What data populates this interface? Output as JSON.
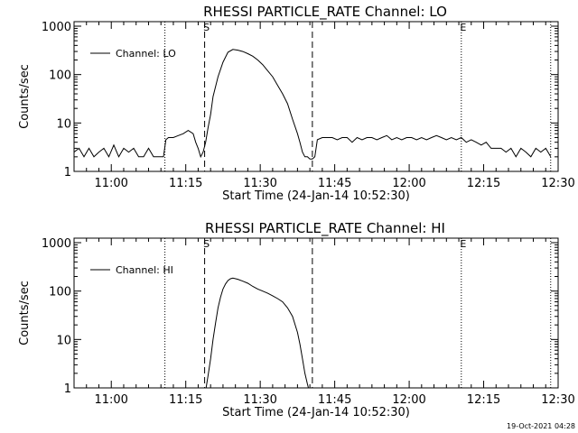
{
  "footer": {
    "timestamp": "19-Oct-2021 04:28"
  },
  "chart_data": [
    {
      "type": "line",
      "title": "RHESSI PARTICLE_RATE Channel: LO",
      "xlabel": "Start Time (24-Jan-14 10:52:30)",
      "ylabel": "Counts/sec",
      "yscale": "log",
      "ylim": [
        1,
        1000
      ],
      "xlim_min": [
        0,
        97.5
      ],
      "y_ticks": [
        "1",
        "10",
        "100",
        "1000"
      ],
      "x_tick_labels": [
        "11:00",
        "11:15",
        "11:30",
        "11:45",
        "12:00",
        "12:15",
        "12:30"
      ],
      "x_tick_min": [
        7.5,
        22.5,
        37.5,
        52.5,
        67.5,
        82.5,
        97.5
      ],
      "legend": {
        "label": "Channel: LO",
        "position": "top-left"
      },
      "markers": [
        {
          "label": "",
          "min": 18.3,
          "style": "dotted"
        },
        {
          "label": "S",
          "min": 26.3,
          "style": "dashed"
        },
        {
          "label": "",
          "min": 48.0,
          "style": "dashed"
        },
        {
          "label": "E",
          "min": 78.0,
          "style": "dotted"
        },
        {
          "label": "",
          "min": 96.0,
          "style": "dotted"
        }
      ],
      "series": [
        {
          "x": [
            0,
            1,
            2,
            3,
            4,
            5,
            6,
            7,
            8,
            9,
            10,
            11,
            12,
            13,
            14,
            15,
            16,
            17,
            18,
            18.5,
            19,
            20,
            21,
            22,
            23,
            24,
            24.5,
            25,
            25.5,
            26,
            26.5,
            27,
            27.5,
            28,
            29,
            30,
            31,
            32,
            33,
            34,
            35,
            36,
            37,
            38,
            39,
            40,
            41,
            42,
            43,
            44,
            45,
            45.5,
            46,
            46.5,
            47,
            47.5,
            48,
            48.5,
            49,
            50,
            51,
            52,
            53,
            54,
            55,
            56,
            57,
            58,
            59,
            60,
            61,
            62,
            63,
            64,
            65,
            66,
            67,
            68,
            69,
            70,
            71,
            72,
            73,
            74,
            75,
            76,
            77,
            78,
            79,
            80,
            81,
            82,
            83,
            84,
            85,
            86,
            87,
            88,
            89,
            90,
            91,
            92,
            93,
            94,
            95,
            96
          ],
          "y": [
            2.5,
            3,
            2,
            3,
            2,
            2.5,
            3,
            2,
            3.5,
            2,
            3,
            2.5,
            3,
            2,
            2,
            3,
            2,
            2,
            2,
            4.5,
            5,
            5,
            5.5,
            6,
            7,
            6,
            4,
            3,
            2,
            2.5,
            4,
            8,
            15,
            35,
            90,
            180,
            290,
            330,
            320,
            300,
            270,
            240,
            200,
            160,
            120,
            90,
            60,
            40,
            25,
            12,
            6,
            4,
            2.5,
            2,
            2,
            1.8,
            1.8,
            2,
            4.5,
            5,
            5,
            5,
            4.5,
            5,
            5,
            4,
            5,
            4.5,
            5,
            5,
            4.5,
            5,
            5.5,
            4.5,
            5,
            4.5,
            5,
            5,
            4.5,
            5,
            4.5,
            5,
            5.5,
            5,
            4.5,
            5,
            4.5,
            5,
            4,
            4.5,
            4,
            3.5,
            4,
            3,
            3,
            3,
            2.5,
            3,
            2,
            3,
            2.5,
            2,
            3,
            2.5,
            3,
            2
          ]
        }
      ]
    },
    {
      "type": "line",
      "title": "RHESSI PARTICLE_RATE Channel: HI",
      "xlabel": "Start Time (24-Jan-14 10:52:30)",
      "ylabel": "Counts/sec",
      "yscale": "log",
      "ylim": [
        1,
        1000
      ],
      "xlim_min": [
        0,
        97.5
      ],
      "y_ticks": [
        "1",
        "10",
        "100",
        "1000"
      ],
      "x_tick_labels": [
        "11:00",
        "11:15",
        "11:30",
        "11:45",
        "12:00",
        "12:15",
        "12:30"
      ],
      "x_tick_min": [
        7.5,
        22.5,
        37.5,
        52.5,
        67.5,
        82.5,
        97.5
      ],
      "legend": {
        "label": "Channel: HI",
        "position": "top-left"
      },
      "markers": [
        {
          "label": "",
          "min": 18.3,
          "style": "dotted"
        },
        {
          "label": "S",
          "min": 26.3,
          "style": "dashed"
        },
        {
          "label": "",
          "min": 48.0,
          "style": "dashed"
        },
        {
          "label": "E",
          "min": 78.0,
          "style": "dotted"
        },
        {
          "label": "",
          "min": 96.0,
          "style": "dotted"
        }
      ],
      "series": [
        {
          "x": [
            26.6,
            27,
            27.5,
            28,
            28.5,
            29,
            29.5,
            30,
            30.5,
            31,
            31.5,
            32,
            33,
            34,
            35,
            36,
            37,
            38,
            39,
            40,
            41,
            42,
            43,
            44,
            45,
            45.5,
            46,
            46.5,
            47,
            47.2
          ],
          "y": [
            1,
            1.8,
            4,
            10,
            22,
            45,
            75,
            110,
            140,
            165,
            180,
            185,
            175,
            160,
            145,
            125,
            110,
            100,
            90,
            80,
            70,
            60,
            45,
            30,
            14,
            8,
            4,
            2,
            1.2,
            1
          ]
        }
      ]
    }
  ]
}
